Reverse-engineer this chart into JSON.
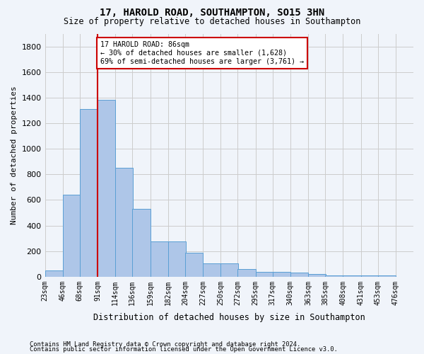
{
  "title1": "17, HAROLD ROAD, SOUTHAMPTON, SO15 3HN",
  "title2": "Size of property relative to detached houses in Southampton",
  "xlabel": "Distribution of detached houses by size in Southampton",
  "ylabel": "Number of detached properties",
  "bar_values": [
    50,
    640,
    1310,
    1380,
    850,
    530,
    275,
    275,
    185,
    105,
    105,
    60,
    40,
    40,
    30,
    20,
    10,
    10,
    10,
    10
  ],
  "bin_labels": [
    "23sqm",
    "46sqm",
    "68sqm",
    "91sqm",
    "114sqm",
    "136sqm",
    "159sqm",
    "182sqm",
    "204sqm",
    "227sqm",
    "250sqm",
    "272sqm",
    "295sqm",
    "317sqm",
    "340sqm",
    "363sqm",
    "385sqm",
    "408sqm",
    "431sqm",
    "453sqm",
    "476sqm"
  ],
  "bar_color": "#aec6e8",
  "bar_edge_color": "#5a9fd4",
  "grid_color": "#cccccc",
  "annotation_text": "17 HAROLD ROAD: 86sqm\n← 30% of detached houses are smaller (1,628)\n69% of semi-detached houses are larger (3,761) →",
  "annotation_box_color": "#ffffff",
  "annotation_box_edge": "#cc0000",
  "vline_color": "#cc0000",
  "ylim": [
    0,
    1900
  ],
  "yticks": [
    0,
    200,
    400,
    600,
    800,
    1000,
    1200,
    1400,
    1600,
    1800
  ],
  "footnote1": "Contains HM Land Registry data © Crown copyright and database right 2024.",
  "footnote2": "Contains public sector information licensed under the Open Government Licence v3.0.",
  "bg_color": "#f0f4fa",
  "bin_edges": [
    23,
    46,
    68,
    91,
    114,
    136,
    159,
    182,
    204,
    227,
    250,
    272,
    295,
    317,
    340,
    363,
    385,
    408,
    431,
    453,
    476
  ]
}
